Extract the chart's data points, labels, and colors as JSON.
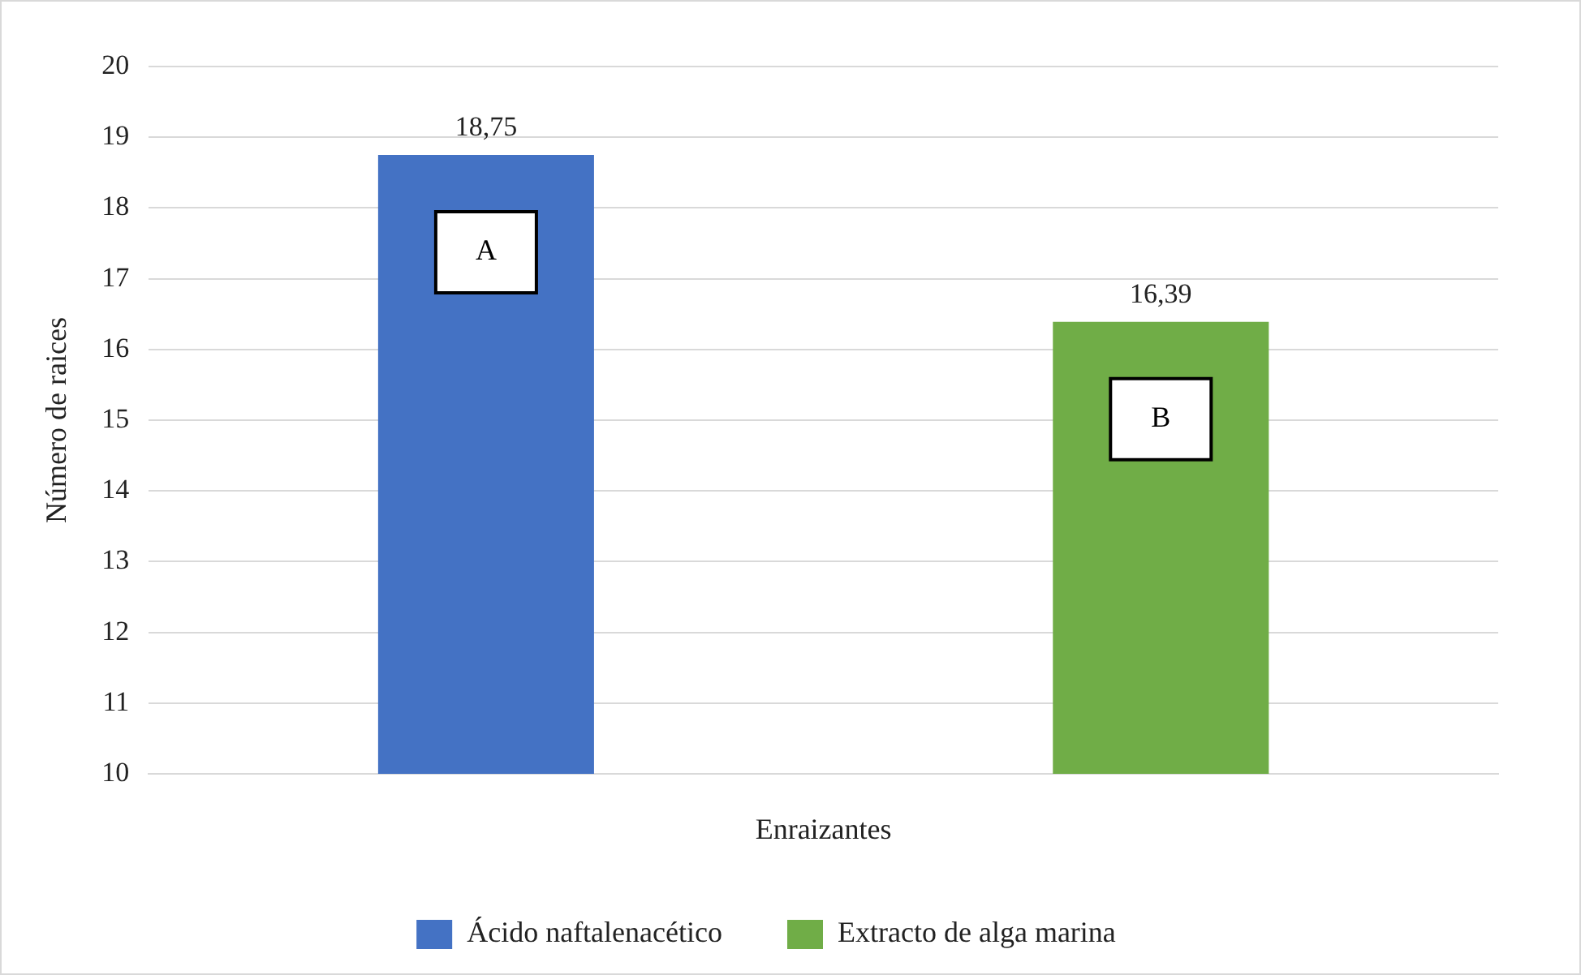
{
  "chart_data": {
    "type": "bar",
    "xlabel": "Enraizantes",
    "ylabel": "Número de raices",
    "categories": [
      null,
      null
    ],
    "series": [
      {
        "name": "Ácido naftalenacético",
        "color": "#4472c4",
        "values": [
          18.75,
          null
        ],
        "value_labels": [
          "18,75",
          null
        ]
      },
      {
        "name": "Extracto de alga marina",
        "color": "#70ad47",
        "values": [
          null,
          16.39
        ],
        "value_labels": [
          null,
          "16,39"
        ]
      }
    ],
    "ylim": [
      10,
      20
    ],
    "yticks": [
      10,
      11,
      12,
      13,
      14,
      15,
      16,
      17,
      18,
      19,
      20
    ],
    "grid": "y",
    "legend": "bottom",
    "annotations": [
      "A",
      "B"
    ]
  }
}
